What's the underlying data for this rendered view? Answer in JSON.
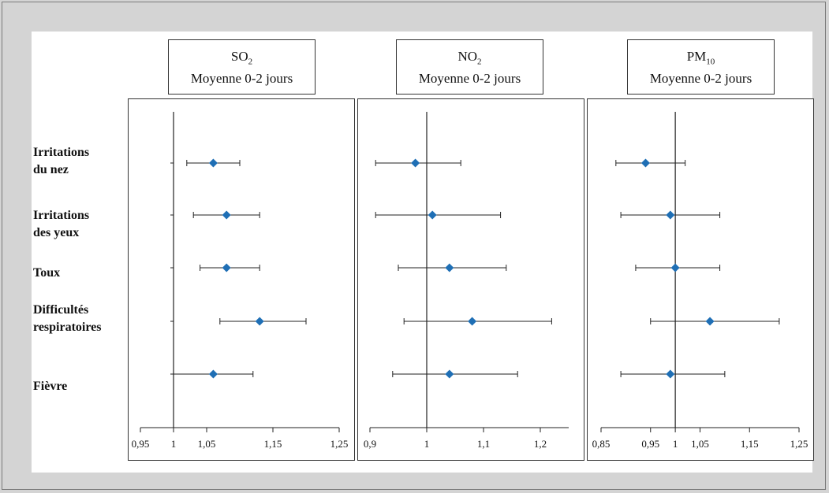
{
  "colors": {
    "marker": "#1f6fb5",
    "line": "#222222"
  },
  "rows": [
    {
      "line1": "Irritations",
      "line2": "du nez"
    },
    {
      "line1": "Irritations",
      "line2": "des yeux"
    },
    {
      "line1": "Toux",
      "line2": ""
    },
    {
      "line1": "Difficultés",
      "line2": "respiratoires"
    },
    {
      "line1": "Fièvre",
      "line2": ""
    }
  ],
  "panels": [
    {
      "title_main": "SO",
      "title_sub": "2",
      "subtitle": "Moyenne 0-2 jours"
    },
    {
      "title_main": "NO",
      "title_sub": "2",
      "subtitle": "Moyenne 0-2 jours"
    },
    {
      "title_main": "PM",
      "title_sub": "10",
      "subtitle": "Moyenne 0-2 jours"
    }
  ],
  "chart_data": [
    {
      "type": "scatter",
      "title": "SO2 Moyenne 0-2 jours",
      "categories": [
        "Irritations du nez",
        "Irritations des yeux",
        "Toux",
        "Difficultés respiratoires",
        "Fièvre"
      ],
      "xlim": [
        0.95,
        1.25
      ],
      "xticks": [
        0.95,
        1,
        1.05,
        1.15,
        1.25
      ],
      "xtick_labels": [
        "0,95",
        "1",
        "1,05",
        "1,15",
        "1,25"
      ],
      "reference_line": 1,
      "estimates": [
        1.06,
        1.08,
        1.08,
        1.13,
        1.06
      ],
      "ci_low": [
        1.02,
        1.03,
        1.04,
        1.07,
        1.0
      ],
      "ci_high": [
        1.1,
        1.13,
        1.13,
        1.2,
        1.12
      ]
    },
    {
      "type": "scatter",
      "title": "NO2 Moyenne 0-2 jours",
      "categories": [
        "Irritations du nez",
        "Irritations des yeux",
        "Toux",
        "Difficultés respiratoires",
        "Fièvre"
      ],
      "xlim": [
        0.9,
        1.25
      ],
      "xticks": [
        0.9,
        1,
        1.1,
        1.2
      ],
      "xtick_labels": [
        "0,9",
        "1",
        "1,1",
        "1,2"
      ],
      "reference_line": 1,
      "estimates": [
        0.98,
        1.01,
        1.04,
        1.08,
        1.04
      ],
      "ci_low": [
        0.91,
        0.91,
        0.95,
        0.96,
        0.94
      ],
      "ci_high": [
        1.06,
        1.13,
        1.14,
        1.22,
        1.16
      ]
    },
    {
      "type": "scatter",
      "title": "PM10 Moyenne 0-2 jours",
      "categories": [
        "Irritations du nez",
        "Irritations des yeux",
        "Toux",
        "Difficultés respiratoires",
        "Fièvre"
      ],
      "xlim": [
        0.85,
        1.25
      ],
      "xticks": [
        0.85,
        0.95,
        1,
        1.05,
        1.15,
        1.25
      ],
      "xtick_labels": [
        "0,85",
        "0,95",
        "1",
        "1,05",
        "1,15",
        "1,25"
      ],
      "reference_line": 1,
      "estimates": [
        0.94,
        0.99,
        1.0,
        1.07,
        0.99
      ],
      "ci_low": [
        0.88,
        0.89,
        0.92,
        0.95,
        0.89
      ],
      "ci_high": [
        1.02,
        1.09,
        1.09,
        1.21,
        1.1
      ]
    }
  ]
}
